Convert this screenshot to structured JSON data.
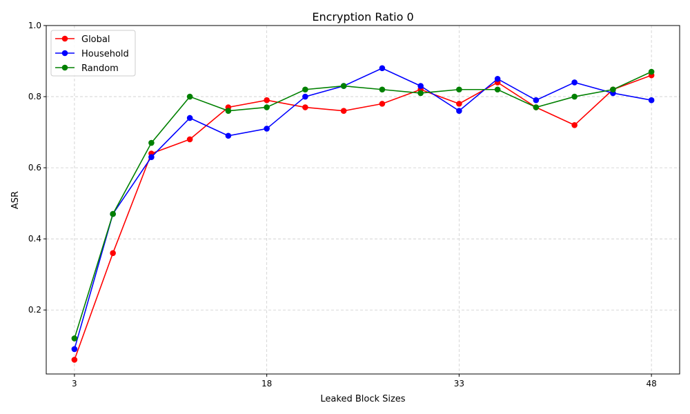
{
  "chart_data": {
    "type": "line",
    "title": "Encryption Ratio 0",
    "xlabel": "Leaked Block Sizes",
    "ylabel": "ASR",
    "x": [
      3,
      6,
      9,
      12,
      15,
      18,
      21,
      24,
      27,
      30,
      33,
      36,
      39,
      42,
      45,
      48
    ],
    "xlim": [
      0.8,
      50.2
    ],
    "ylim": [
      0.02,
      1.0
    ],
    "xticks": [
      3,
      18,
      33,
      48
    ],
    "yticks": [
      0.2,
      0.4,
      0.6,
      0.8,
      1.0
    ],
    "ytick_labels": [
      "0.2",
      "0.4",
      "0.6",
      "0.8",
      "1.0"
    ],
    "grid": true,
    "legend_position": "top-left",
    "series": [
      {
        "name": "Global",
        "color": "#ff0000",
        "values": [
          0.06,
          0.36,
          0.64,
          0.68,
          0.77,
          0.79,
          0.77,
          0.76,
          0.78,
          0.82,
          0.78,
          0.84,
          0.77,
          0.72,
          0.82,
          0.86
        ]
      },
      {
        "name": "Household",
        "color": "#0000ff",
        "values": [
          0.09,
          0.47,
          0.63,
          0.74,
          0.69,
          0.71,
          0.8,
          0.83,
          0.88,
          0.83,
          0.76,
          0.85,
          0.79,
          0.84,
          0.81,
          0.79
        ]
      },
      {
        "name": "Random",
        "color": "#008000",
        "values": [
          0.12,
          0.47,
          0.67,
          0.8,
          0.76,
          0.77,
          0.82,
          0.83,
          0.82,
          0.81,
          0.82,
          0.82,
          0.77,
          0.8,
          0.82,
          0.87
        ]
      }
    ]
  }
}
